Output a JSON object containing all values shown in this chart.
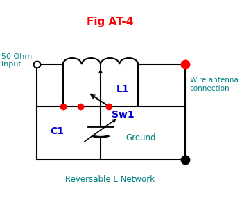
{
  "title": "Fig AT-4",
  "title_color": "#ff0000",
  "title_fontsize": 11,
  "label_50ohm": "50 Ohm\ninput",
  "label_L1": "L1",
  "label_C1": "C1",
  "label_Sw1": "Sw1",
  "label_ground": "Ground",
  "label_wire_antenna": "Wire antenna\nconnection",
  "label_bottom": "Reversable L Network",
  "teal_color": "#008080",
  "blue_color": "#0000cc",
  "black_color": "#000000",
  "red_color": "#ff0000",
  "bg_color": "#ffffff",
  "lw": 1.5
}
